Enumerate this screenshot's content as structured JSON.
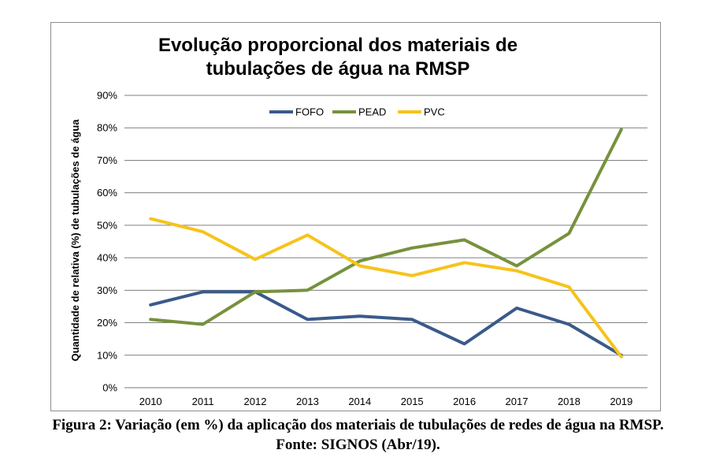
{
  "chart_data": {
    "type": "line",
    "title_lines": [
      "Evolução proporcional dos materiais de",
      "tubulações de água na RMSP"
    ],
    "ylabel": "Quantidade de relativa (%) de tubulações de água",
    "xlabel": "",
    "x": [
      "2010",
      "2011",
      "2012",
      "2013",
      "2014",
      "2015",
      "2016",
      "2017",
      "2018",
      "2019"
    ],
    "ylim": [
      0,
      90
    ],
    "yticks": [
      "0%",
      "10%",
      "20%",
      "30%",
      "40%",
      "50%",
      "60%",
      "70%",
      "80%",
      "90%"
    ],
    "grid": true,
    "legend_position": "top-center",
    "series": [
      {
        "name": "FOFO",
        "color": "#3a5a8a",
        "values": [
          25.5,
          29.5,
          29.5,
          21,
          22,
          21,
          13.5,
          24.5,
          19.5,
          10
        ]
      },
      {
        "name": "PEAD",
        "color": "#76923c",
        "values": [
          21,
          19.5,
          29.5,
          30,
          39,
          43,
          45.5,
          37.5,
          47.5,
          79.5
        ]
      },
      {
        "name": "PVC",
        "color": "#f7c31b",
        "values": [
          52,
          48,
          39.5,
          47,
          37.5,
          34.5,
          38.5,
          36,
          31,
          9.5
        ]
      }
    ]
  },
  "caption": {
    "line1": "Figura 2: Variação (em %) da aplicação dos materiais de tubulações de redes de água na RMSP.",
    "line2": "Fonte: SIGNOS (Abr/19)."
  }
}
